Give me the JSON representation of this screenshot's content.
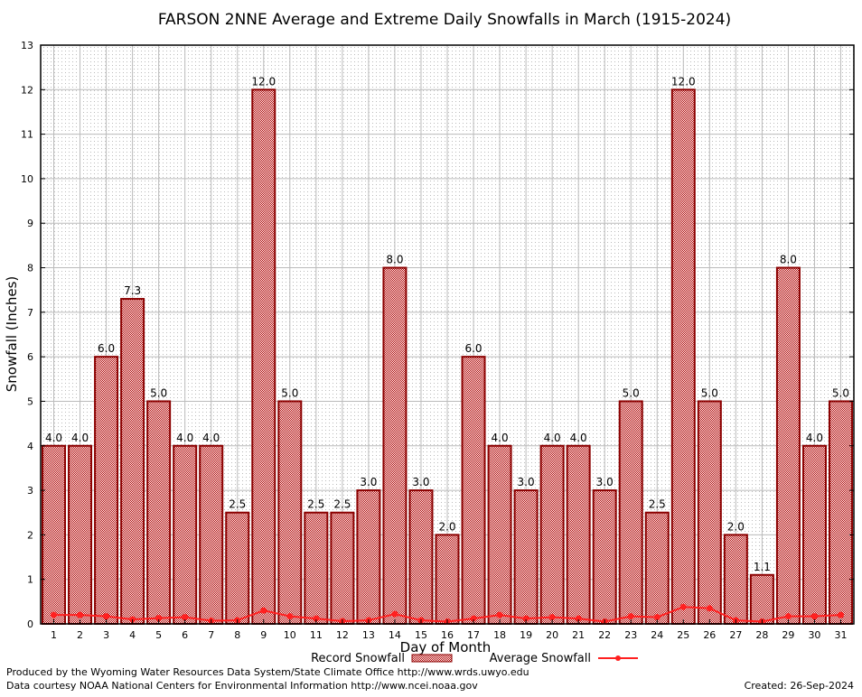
{
  "chart_data": {
    "type": "bar",
    "title": "FARSON 2NNE Average and Extreme Daily Snowfalls in March (1915-2024)",
    "xlabel": "Day of Month",
    "ylabel": "Snowfall (Inches)",
    "ylim": [
      0,
      13
    ],
    "yticks": [
      0,
      1,
      2,
      3,
      4,
      5,
      6,
      7,
      8,
      9,
      10,
      11,
      12,
      13
    ],
    "grid": true,
    "legend_placement": "bottom-center",
    "categories": [
      "1",
      "2",
      "3",
      "4",
      "5",
      "6",
      "7",
      "8",
      "9",
      "10",
      "11",
      "12",
      "13",
      "14",
      "15",
      "16",
      "17",
      "18",
      "19",
      "20",
      "21",
      "22",
      "23",
      "24",
      "25",
      "26",
      "27",
      "28",
      "29",
      "30",
      "31"
    ],
    "series": [
      {
        "name": "Record Snowfall",
        "type": "bar",
        "values": [
          4.0,
          4.0,
          6.0,
          7.3,
          5.0,
          4.0,
          4.0,
          2.5,
          12.0,
          5.0,
          2.5,
          2.5,
          3.0,
          8.0,
          3.0,
          2.0,
          6.0,
          4.0,
          3.0,
          4.0,
          4.0,
          3.0,
          5.0,
          2.5,
          12.0,
          5.0,
          2.0,
          1.1,
          8.0,
          4.0,
          5.0
        ],
        "labels": [
          "4.0",
          "4.0",
          "6.0",
          "7.3",
          "5.0",
          "4.0",
          "4.0",
          "2.5",
          "12.0",
          "5.0",
          "2.5",
          "2.5",
          "3.0",
          "8.0",
          "3.0",
          "2.0",
          "6.0",
          "4.0",
          "3.0",
          "4.0",
          "4.0",
          "3.0",
          "5.0",
          "2.5",
          "12.0",
          "5.0",
          "2.0",
          "1.1",
          "8.0",
          "4.0",
          "5.0"
        ]
      },
      {
        "name": "Average Snowfall",
        "type": "line",
        "values": [
          0.2,
          0.2,
          0.17,
          0.1,
          0.13,
          0.15,
          0.07,
          0.08,
          0.3,
          0.17,
          0.12,
          0.06,
          0.08,
          0.22,
          0.08,
          0.05,
          0.12,
          0.2,
          0.12,
          0.15,
          0.12,
          0.05,
          0.17,
          0.15,
          0.38,
          0.35,
          0.08,
          0.05,
          0.17,
          0.17,
          0.2
        ]
      }
    ],
    "colors": {
      "bar_fill": "#cc0000",
      "bar_edge": "#8b0000",
      "line": "#ff2020"
    }
  },
  "footer": {
    "producer": "Produced by the Wyoming Water Resources Data System/State Climate Office http://www.wrds.uwyo.edu",
    "courtesy": "Data courtesy NOAA National Centers for Environmental Information http://www.ncei.noaa.gov",
    "created": "Created: 26-Sep-2024"
  }
}
